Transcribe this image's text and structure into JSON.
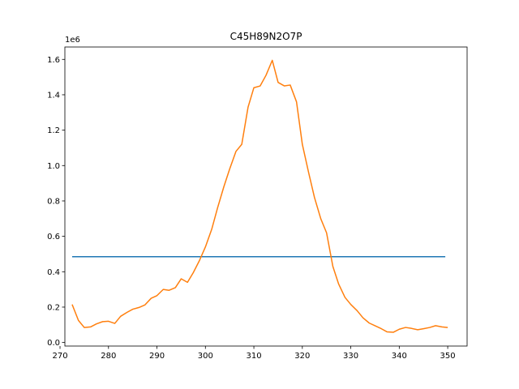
{
  "chart_data": {
    "type": "line",
    "title": "C45H89N2O7P",
    "xlabel": "",
    "ylabel": "",
    "y_offset_label": "1e6",
    "xlim": [
      271,
      354
    ],
    "ylim": [
      -20000,
      1670000
    ],
    "x_ticks": [
      270,
      280,
      290,
      300,
      310,
      320,
      330,
      340,
      350
    ],
    "y_ticks": [
      0,
      200000,
      400000,
      600000,
      800000,
      1000000,
      1200000,
      1400000,
      1600000
    ],
    "y_tick_labels": [
      "0.0",
      "0.2",
      "0.4",
      "0.6",
      "0.8",
      "1.0",
      "1.2",
      "1.4",
      "1.6"
    ],
    "grid": false,
    "series": [
      {
        "color": "#1f77b4",
        "x": [
          272.5,
          349.5
        ],
        "y": [
          485000,
          485000
        ]
      },
      {
        "color": "#ff7f0e",
        "x": [
          272.5,
          273.8,
          275.0,
          276.3,
          277.5,
          278.8,
          280.0,
          281.3,
          282.5,
          283.8,
          285.0,
          286.3,
          287.5,
          288.8,
          290.0,
          291.3,
          292.5,
          293.8,
          295.0,
          296.3,
          297.5,
          298.8,
          300.0,
          301.3,
          302.5,
          303.8,
          305.0,
          306.3,
          307.5,
          308.8,
          310.0,
          311.3,
          312.5,
          313.8,
          315.0,
          316.3,
          317.5,
          318.8,
          320.0,
          321.3,
          322.5,
          323.8,
          325.0,
          326.3,
          327.5,
          328.8,
          330.0,
          331.3,
          332.5,
          333.8,
          335.0,
          336.3,
          337.5,
          338.8,
          340.0,
          341.3,
          342.5,
          343.8,
          345.0,
          346.3,
          347.5,
          348.8,
          350.0
        ],
        "y": [
          215000,
          125000,
          85000,
          88000,
          105000,
          118000,
          120000,
          108000,
          148000,
          170000,
          188000,
          198000,
          212000,
          250000,
          265000,
          300000,
          295000,
          310000,
          360000,
          340000,
          395000,
          465000,
          540000,
          640000,
          760000,
          880000,
          980000,
          1080000,
          1120000,
          1330000,
          1440000,
          1450000,
          1510000,
          1595000,
          1470000,
          1450000,
          1455000,
          1360000,
          1120000,
          960000,
          820000,
          700000,
          620000,
          430000,
          330000,
          255000,
          215000,
          180000,
          140000,
          110000,
          95000,
          78000,
          60000,
          58000,
          75000,
          85000,
          80000,
          72000,
          78000,
          85000,
          95000,
          88000,
          85000
        ]
      }
    ]
  }
}
